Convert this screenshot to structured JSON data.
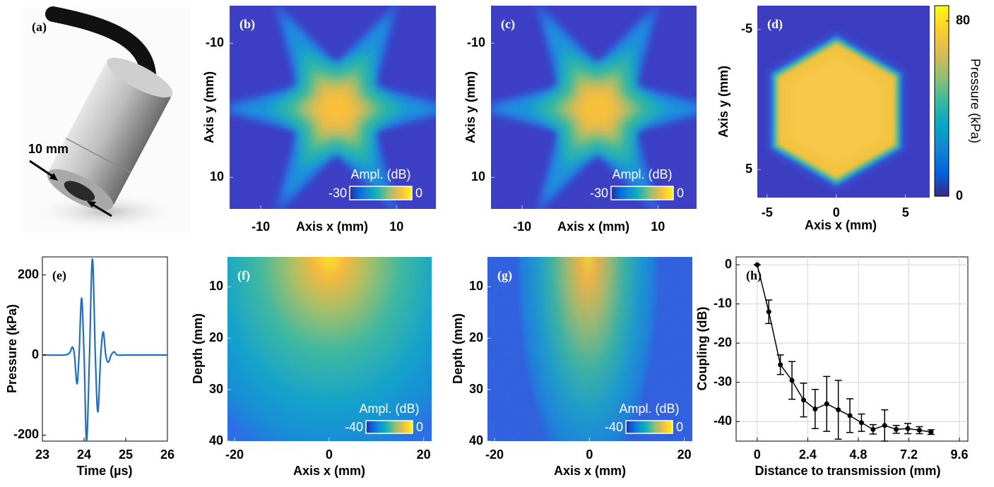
{
  "chart_data": [
    {
      "type": "image",
      "label": "(a)",
      "annotation": "10 mm"
    },
    {
      "type": "heatmap",
      "label": "(b)",
      "xlabel": "Axis x (mm)",
      "ylabel": "Axis y (mm)",
      "xlim": [
        -14.6,
        15.8
      ],
      "ylim": [
        14.7,
        -15.6
      ],
      "xticks": [
        -10,
        10
      ],
      "yticks": [
        -10,
        10
      ],
      "colorbar": {
        "label": "Ampl. (dB)",
        "lim": [
          -30,
          0
        ],
        "ticks": [
          -30,
          0
        ]
      }
    },
    {
      "type": "heatmap",
      "label": "(c)",
      "xlabel": "Axis x (mm)",
      "ylabel": "Axis y (mm)",
      "xlim": [
        -14.6,
        15.7
      ],
      "ylim": [
        14.7,
        -15.6
      ],
      "xticks": [
        -10,
        10
      ],
      "yticks": [
        -10,
        10
      ],
      "colorbar": {
        "label": "Ampl. (dB)",
        "lim": [
          -30,
          0
        ],
        "ticks": [
          -30,
          0
        ]
      }
    },
    {
      "type": "heatmap",
      "label": "(d)",
      "xlabel": "Axis x (mm)",
      "ylabel": "Axis y (mm)",
      "xlim": [
        -5.7,
        6.75
      ],
      "ylim": [
        7,
        -6.7
      ],
      "xticks": [
        -5,
        0,
        5
      ],
      "yticks": [
        -5,
        5
      ],
      "colorbar": {
        "label": "Pressure (kPa)",
        "lim": [
          0,
          87
        ],
        "ticks": [
          0,
          80
        ]
      }
    },
    {
      "type": "line",
      "label": "(e)",
      "xlabel": "Time (µs)",
      "ylabel": "Pressure (kPa)",
      "x": [
        23,
        23.5,
        23.65,
        23.72,
        23.77,
        23.83,
        23.88,
        23.94,
        24.0,
        24.06,
        24.13,
        24.2,
        24.27,
        24.33,
        24.4,
        24.46,
        24.52,
        24.58,
        24.65,
        24.72,
        24.8,
        25,
        26
      ],
      "series": [
        {
          "color": "#1f6fbf",
          "values": [
            0,
            0,
            5,
            20,
            0,
            -72,
            0,
            142,
            0,
            -215,
            0,
            240,
            0,
            -142,
            0,
            58,
            0,
            -18,
            0,
            8,
            0,
            0,
            0
          ]
        }
      ],
      "xlim": [
        23,
        26
      ],
      "ylim": [
        -215,
        245
      ],
      "xticks": [
        23,
        24,
        25,
        26
      ],
      "yticks": [
        -200,
        0,
        200
      ]
    },
    {
      "type": "heatmap",
      "label": "(f)",
      "xlabel": "Axis x (mm)",
      "ylabel": "Depth (mm)",
      "xlim": [
        -21.5,
        21.7
      ],
      "ylim": [
        40,
        4.2
      ],
      "xticks": [
        -20,
        0,
        20
      ],
      "yticks": [
        10,
        20,
        30,
        40
      ],
      "colorbar": {
        "label": "Ampl. (dB)",
        "lim": [
          -40,
          0
        ],
        "ticks": [
          -40,
          0
        ]
      }
    },
    {
      "type": "heatmap",
      "label": "(g)",
      "xlabel": "Axis x (mm)",
      "ylabel": "Depth (mm)",
      "xlim": [
        -21.5,
        21.7
      ],
      "ylim": [
        40,
        4.2
      ],
      "xticks": [
        -20,
        0,
        20
      ],
      "yticks": [
        10,
        20,
        30,
        40
      ],
      "colorbar": {
        "label": "Ampl. (dB)",
        "lim": [
          -40,
          0
        ],
        "ticks": [
          -40,
          0
        ]
      }
    },
    {
      "type": "errorbar",
      "label": "(h)",
      "xlabel": "Distance to transmission (mm)",
      "ylabel": "Coupling (dB)",
      "x": [
        0,
        0.55,
        1.1,
        1.65,
        2.2,
        2.75,
        3.3,
        3.85,
        4.4,
        4.95,
        5.5,
        6.05,
        6.6,
        7.15,
        7.7,
        8.25
      ],
      "series": [
        {
          "color": "#000000",
          "values": [
            0,
            -12,
            -25.5,
            -29.5,
            -34.5,
            -36.8,
            -35.5,
            -37,
            -38.5,
            -40.3,
            -42,
            -41,
            -42,
            -41.8,
            -42.2,
            -42.7
          ],
          "errors": [
            0,
            3,
            2.5,
            4.8,
            4.3,
            5,
            7,
            7.5,
            4.3,
            2.2,
            1.2,
            4,
            1,
            1.3,
            0.9,
            0.6
          ]
        }
      ],
      "xlim": [
        -1,
        10
      ],
      "ylim": [
        -45,
        2
      ],
      "xticks": [
        0,
        2.4,
        4.8,
        7.2,
        9.6
      ],
      "yticks": [
        -40,
        -30,
        -20,
        -10,
        0
      ],
      "grid": true
    }
  ]
}
